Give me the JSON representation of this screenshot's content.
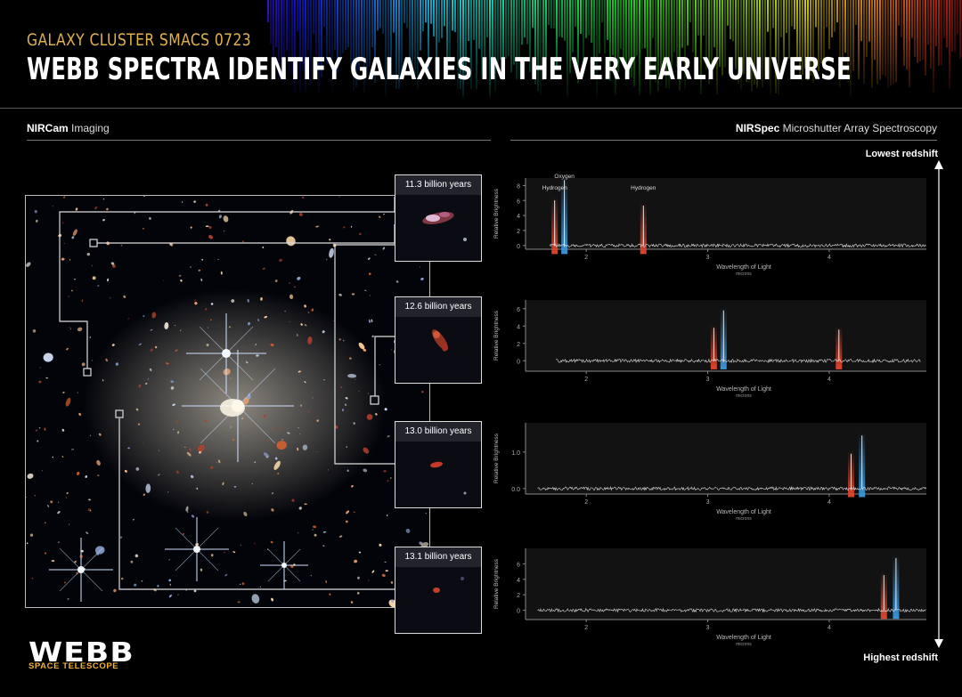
{
  "header": {
    "subtitle": "GALAXY CLUSTER SMACS 0723",
    "title": "WEBB SPECTRA IDENTIFY GALAXIES IN THE VERY EARLY UNIVERSE"
  },
  "sections": {
    "left_bold": "NIRCam",
    "left_rest": " Imaging",
    "right_bold": "NIRSpec",
    "right_rest": " Microshutter Array Spectroscopy"
  },
  "redshift": {
    "top": "Lowest redshift",
    "bottom": "Highest redshift"
  },
  "insets": [
    {
      "label": "11.3 billion years"
    },
    {
      "label": "12.6 billion years"
    },
    {
      "label": "13.0 billion years"
    },
    {
      "label": "13.1 billion years"
    }
  ],
  "chart_data": [
    {
      "type": "line",
      "xlabel": "Wavelength of Light",
      "xunit": "microns",
      "ylabel": "Relative Brightness",
      "xticks": [
        "2",
        "3",
        "4"
      ],
      "yticks": [
        "0",
        "2",
        "4",
        "6",
        "8"
      ],
      "xlim": [
        1.5,
        4.8
      ],
      "ylim": [
        -0.5,
        9
      ],
      "series": [
        {
          "x": [
            1.7,
            4.8
          ],
          "y": [
            0,
            0
          ]
        }
      ],
      "lines": [
        {
          "x": 1.74,
          "y": 6.5,
          "color": "#e0442a"
        },
        {
          "x": 1.82,
          "y": 9.2,
          "color": "#3a93d8"
        },
        {
          "x": 2.47,
          "y": 5.8,
          "color": "#e0442a"
        }
      ],
      "annotations": [
        {
          "text": "Hydrogen",
          "x": 1.74
        },
        {
          "text": "Oxygen",
          "x": 1.82
        },
        {
          "text": "Hydrogen",
          "x": 2.47
        }
      ]
    },
    {
      "type": "line",
      "xlabel": "Wavelength of Light",
      "xunit": "microns",
      "ylabel": "Relative Brightness",
      "xticks": [
        "2",
        "3",
        "4"
      ],
      "yticks": [
        "0",
        "2",
        "4",
        "6"
      ],
      "xlim": [
        1.5,
        4.8
      ],
      "ylim": [
        -1.2,
        7
      ],
      "series": [
        {
          "x": [
            1.75,
            4.75
          ],
          "y": [
            0,
            0
          ]
        }
      ],
      "lines": [
        {
          "x": 3.05,
          "y": 4.2,
          "color": "#e0442a"
        },
        {
          "x": 3.13,
          "y": 6.2,
          "color": "#3a93d8"
        },
        {
          "x": 4.08,
          "y": 4.0,
          "color": "#e0442a"
        }
      ],
      "annotations": []
    },
    {
      "type": "line",
      "xlabel": "Wavelength of Light",
      "xunit": "microns",
      "ylabel": "Relative Brightness",
      "xticks": [
        "2",
        "3",
        "4"
      ],
      "yticks": [
        "0.0",
        "1.0"
      ],
      "xlim": [
        1.5,
        4.8
      ],
      "ylim": [
        -0.15,
        1.8
      ],
      "series": [
        {
          "x": [
            1.6,
            4.8
          ],
          "y": [
            0,
            0
          ]
        }
      ],
      "lines": [
        {
          "x": 4.18,
          "y": 1.05,
          "color": "#e0442a"
        },
        {
          "x": 4.27,
          "y": 1.55,
          "color": "#3a93d8"
        }
      ],
      "annotations": []
    },
    {
      "type": "line",
      "xlabel": "Wavelength of Light",
      "xunit": "microns",
      "ylabel": "Relative Brightness",
      "xticks": [
        "2",
        "3",
        "4"
      ],
      "yticks": [
        "0",
        "2",
        "4",
        "6"
      ],
      "xlim": [
        1.5,
        4.8
      ],
      "ylim": [
        -1.2,
        8
      ],
      "series": [
        {
          "x": [
            1.6,
            4.8
          ],
          "y": [
            0,
            0
          ]
        }
      ],
      "lines": [
        {
          "x": 4.45,
          "y": 5.0,
          "color": "#e0442a"
        },
        {
          "x": 4.55,
          "y": 7.2,
          "color": "#3a93d8"
        }
      ],
      "annotations": []
    }
  ],
  "logo": {
    "wordmark": "WEBB",
    "tagline": "SPACE TELESCOPE"
  }
}
